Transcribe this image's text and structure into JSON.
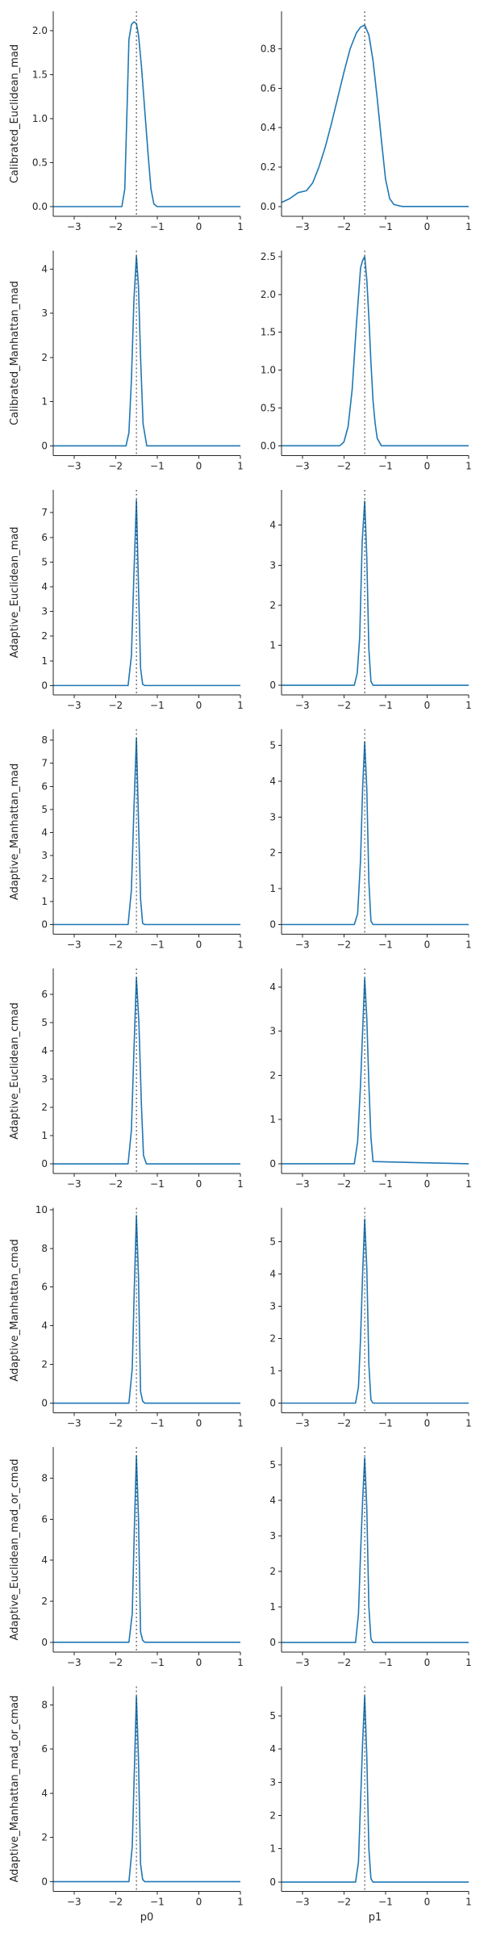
{
  "style": {
    "line_color": "#1f77b4",
    "reference_line_color": "#333333"
  },
  "chart_data": {
    "type": "line",
    "layout": {
      "rows": 8,
      "cols": 2
    },
    "column_xlabels": [
      "p0",
      "p1"
    ],
    "row_ylabels": [
      "Calibrated_Euclidean_mad",
      "Calibrated_Manhattan_mad",
      "Adaptive_Euclidean_mad",
      "Adaptive_Manhattan_mad",
      "Adaptive_Euclidean_cmad",
      "Adaptive_Manhattan_cmad",
      "Adaptive_Euclidean_mad_or_cmad",
      "Adaptive_Manhattan_mad_or_cmad"
    ],
    "xlim": [
      -3.5,
      1
    ],
    "xticks": [
      -3,
      -2,
      -1,
      0,
      1
    ],
    "reference_x": -1.5,
    "panels": [
      {
        "row": 0,
        "col": 0,
        "ylim": [
          -0.11,
          2.22
        ],
        "yticks": [
          0.0,
          0.5,
          1.0,
          1.5,
          2.0
        ],
        "x": [
          -3.5,
          -1.85,
          -1.78,
          -1.72,
          -1.68,
          -1.62,
          -1.56,
          -1.5,
          -1.45,
          -1.38,
          -1.3,
          -1.22,
          -1.15,
          -1.08,
          -1.0,
          1.0
        ],
        "y": [
          0,
          0,
          0.2,
          1.2,
          1.9,
          2.07,
          2.1,
          2.08,
          1.95,
          1.6,
          1.1,
          0.6,
          0.2,
          0.03,
          0,
          0
        ]
      },
      {
        "row": 0,
        "col": 1,
        "ylim": [
          -0.05,
          0.99
        ],
        "yticks": [
          0.0,
          0.2,
          0.4,
          0.6,
          0.8
        ],
        "x": [
          -3.5,
          -3.3,
          -3.1,
          -2.9,
          -2.75,
          -2.6,
          -2.45,
          -2.3,
          -2.15,
          -2.0,
          -1.85,
          -1.7,
          -1.6,
          -1.5,
          -1.4,
          -1.3,
          -1.2,
          -1.1,
          -1.0,
          -0.9,
          -0.8,
          -0.6,
          1.0
        ],
        "y": [
          0.02,
          0.04,
          0.07,
          0.08,
          0.12,
          0.2,
          0.3,
          0.42,
          0.55,
          0.68,
          0.8,
          0.88,
          0.91,
          0.92,
          0.87,
          0.74,
          0.55,
          0.34,
          0.14,
          0.04,
          0.01,
          0,
          0
        ]
      },
      {
        "row": 1,
        "col": 0,
        "ylim": [
          -0.22,
          4.42
        ],
        "yticks": [
          0,
          1,
          2,
          3,
          4
        ],
        "x": [
          -3.5,
          -1.75,
          -1.68,
          -1.62,
          -1.56,
          -1.5,
          -1.45,
          -1.4,
          -1.34,
          -1.25,
          1.0
        ],
        "y": [
          0,
          0,
          0.3,
          1.5,
          3.3,
          4.3,
          3.6,
          2.0,
          0.5,
          0,
          0
        ]
      },
      {
        "row": 1,
        "col": 1,
        "ylim": [
          -0.13,
          2.58
        ],
        "yticks": [
          0.0,
          0.5,
          1.0,
          1.5,
          2.0,
          2.5
        ],
        "x": [
          -3.5,
          -2.1,
          -2.0,
          -1.9,
          -1.8,
          -1.7,
          -1.6,
          -1.55,
          -1.5,
          -1.45,
          -1.4,
          -1.35,
          -1.3,
          -1.25,
          -1.2,
          -1.1,
          1.0
        ],
        "y": [
          0,
          0,
          0.05,
          0.25,
          0.75,
          1.6,
          2.35,
          2.45,
          2.5,
          2.2,
          1.7,
          1.1,
          0.6,
          0.3,
          0.1,
          0,
          0
        ]
      },
      {
        "row": 2,
        "col": 0,
        "ylim": [
          -0.38,
          7.92
        ],
        "yticks": [
          0,
          1,
          2,
          3,
          4,
          5,
          6,
          7
        ],
        "x": [
          -3.5,
          -1.7,
          -1.62,
          -1.56,
          -1.5,
          -1.45,
          -1.4,
          -1.35,
          -1.3,
          1.0
        ],
        "y": [
          0,
          0,
          1.2,
          4.5,
          7.5,
          4.0,
          0.7,
          0.05,
          0,
          0
        ]
      },
      {
        "row": 2,
        "col": 1,
        "ylim": [
          -0.24,
          4.88
        ],
        "yticks": [
          0,
          1,
          2,
          3,
          4
        ],
        "x": [
          -3.5,
          -1.75,
          -1.68,
          -1.62,
          -1.56,
          -1.5,
          -1.45,
          -1.4,
          -1.35,
          -1.3,
          1.0
        ],
        "y": [
          0,
          0,
          0.3,
          1.2,
          3.6,
          4.6,
          3.2,
          0.9,
          0.1,
          0,
          0
        ]
      },
      {
        "row": 3,
        "col": 0,
        "ylim": [
          -0.42,
          8.48
        ],
        "yticks": [
          0,
          1,
          2,
          3,
          4,
          5,
          6,
          7,
          8
        ],
        "x": [
          -3.5,
          -1.7,
          -1.62,
          -1.56,
          -1.5,
          -1.45,
          -1.4,
          -1.35,
          -1.3,
          1.0
        ],
        "y": [
          0,
          0,
          1.5,
          5.0,
          8.1,
          4.5,
          1.1,
          0.05,
          0,
          0
        ]
      },
      {
        "row": 3,
        "col": 1,
        "ylim": [
          -0.27,
          5.45
        ],
        "yticks": [
          0,
          1,
          2,
          3,
          4,
          5
        ],
        "x": [
          -3.5,
          -1.75,
          -1.67,
          -1.6,
          -1.55,
          -1.5,
          -1.45,
          -1.4,
          -1.35,
          -1.3,
          1.0
        ],
        "y": [
          0,
          0,
          0.3,
          1.8,
          3.8,
          5.1,
          3.8,
          1.2,
          0.1,
          0,
          0
        ]
      },
      {
        "row": 4,
        "col": 0,
        "ylim": [
          -0.34,
          6.92
        ],
        "yticks": [
          0,
          1,
          2,
          3,
          4,
          5,
          6
        ],
        "x": [
          -3.5,
          -1.7,
          -1.62,
          -1.56,
          -1.5,
          -1.44,
          -1.38,
          -1.33,
          -1.26,
          1.0
        ],
        "y": [
          0,
          0,
          1.2,
          4.0,
          6.6,
          5.0,
          2.1,
          0.3,
          0,
          0
        ]
      },
      {
        "row": 4,
        "col": 1,
        "ylim": [
          -0.22,
          4.42
        ],
        "yticks": [
          0,
          1,
          2,
          3,
          4
        ],
        "x": [
          -3.5,
          -1.75,
          -1.67,
          -1.6,
          -1.55,
          -1.5,
          -1.45,
          -1.4,
          -1.35,
          -1.3,
          1.0
        ],
        "y": [
          0,
          0,
          0.5,
          1.8,
          3.0,
          4.2,
          3.3,
          1.8,
          0.6,
          0.05,
          0
        ]
      },
      {
        "row": 5,
        "col": 0,
        "ylim": [
          -0.5,
          10.1
        ],
        "yticks": [
          0,
          2,
          4,
          6,
          8,
          10
        ],
        "x": [
          -3.5,
          -1.68,
          -1.6,
          -1.55,
          -1.5,
          -1.45,
          -1.4,
          -1.35,
          -1.3,
          1.0
        ],
        "y": [
          0,
          0,
          1.8,
          6.0,
          9.7,
          6.5,
          0.6,
          0.1,
          0,
          0
        ]
      },
      {
        "row": 5,
        "col": 1,
        "ylim": [
          -0.3,
          6.05
        ],
        "yticks": [
          0,
          1,
          2,
          3,
          4,
          5
        ],
        "x": [
          -3.5,
          -1.72,
          -1.65,
          -1.6,
          -1.55,
          -1.5,
          -1.45,
          -1.4,
          -1.35,
          -1.3,
          1.0
        ],
        "y": [
          0,
          0,
          0.5,
          2.0,
          4.0,
          5.7,
          4.2,
          1.2,
          0.1,
          0,
          0
        ]
      },
      {
        "row": 6,
        "col": 0,
        "ylim": [
          -0.48,
          9.52
        ],
        "yticks": [
          0,
          2,
          4,
          6,
          8
        ],
        "x": [
          -3.5,
          -1.68,
          -1.6,
          -1.55,
          -1.5,
          -1.45,
          -1.4,
          -1.35,
          -1.3,
          1.0
        ],
        "y": [
          0,
          0,
          1.4,
          5.5,
          9.1,
          6.0,
          0.5,
          0.1,
          0,
          0
        ]
      },
      {
        "row": 6,
        "col": 1,
        "ylim": [
          -0.27,
          5.5
        ],
        "yticks": [
          0,
          1,
          2,
          3,
          4,
          5
        ],
        "x": [
          -3.5,
          -1.72,
          -1.65,
          -1.6,
          -1.55,
          -1.5,
          -1.45,
          -1.4,
          -1.35,
          -1.3,
          1.0
        ],
        "y": [
          0,
          0,
          0.8,
          2.5,
          4.0,
          5.2,
          3.8,
          1.0,
          0.1,
          0,
          0
        ]
      },
      {
        "row": 7,
        "col": 0,
        "ylim": [
          -0.44,
          8.84
        ],
        "yticks": [
          0,
          2,
          4,
          6,
          8
        ],
        "x": [
          -3.5,
          -1.68,
          -1.6,
          -1.55,
          -1.5,
          -1.45,
          -1.4,
          -1.35,
          -1.3,
          1.0
        ],
        "y": [
          0,
          0,
          1.6,
          5.0,
          8.4,
          5.5,
          0.8,
          0.1,
          0,
          0
        ]
      },
      {
        "row": 7,
        "col": 1,
        "ylim": [
          -0.28,
          5.88
        ],
        "yticks": [
          0,
          1,
          2,
          3,
          4,
          5
        ],
        "x": [
          -3.5,
          -1.72,
          -1.65,
          -1.6,
          -1.55,
          -1.5,
          -1.45,
          -1.4,
          -1.35,
          -1.3,
          1.0
        ],
        "y": [
          0,
          0,
          0.6,
          2.4,
          4.2,
          5.6,
          3.8,
          1.0,
          0.1,
          0,
          0
        ]
      }
    ]
  }
}
